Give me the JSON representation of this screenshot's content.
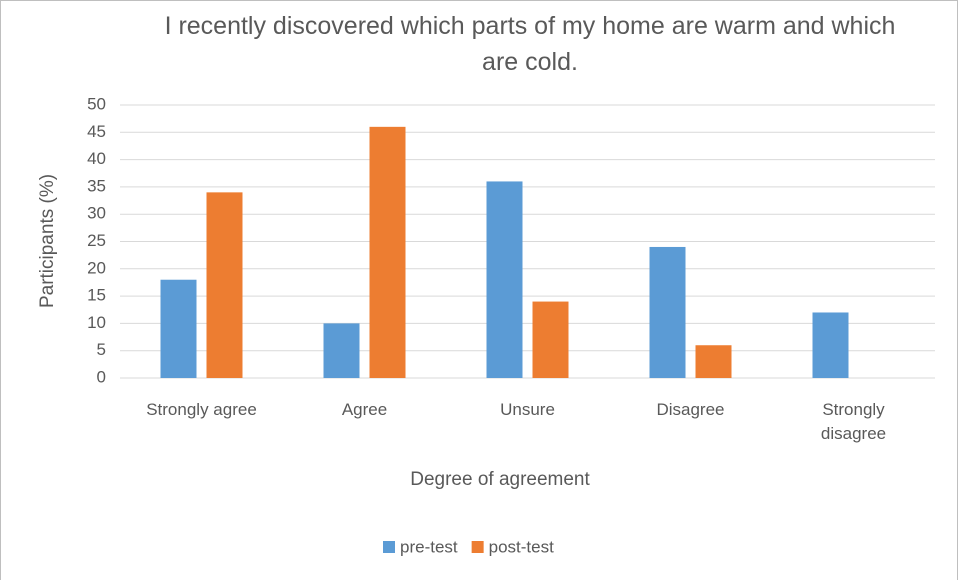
{
  "chart_data": {
    "type": "bar",
    "title": "I recently discovered which parts of my home are warm and which are cold.",
    "x_label": "Degree of agreement",
    "y_label": "Participants (%)",
    "categories": [
      "Strongly agree",
      "Agree",
      "Unsure",
      "Disagree",
      "Strongly disagree"
    ],
    "series": [
      {
        "name": "pre-test",
        "color": "#5b9bd5",
        "values": [
          18,
          10,
          36,
          24,
          12
        ]
      },
      {
        "name": "post-test",
        "color": "#ed7d31",
        "values": [
          34,
          46,
          14,
          6,
          0
        ]
      }
    ],
    "ylim": [
      0,
      50
    ],
    "yticks": [
      0,
      5,
      10,
      15,
      20,
      25,
      30,
      35,
      40,
      45,
      50
    ],
    "grid": true,
    "legend": "bottom"
  }
}
